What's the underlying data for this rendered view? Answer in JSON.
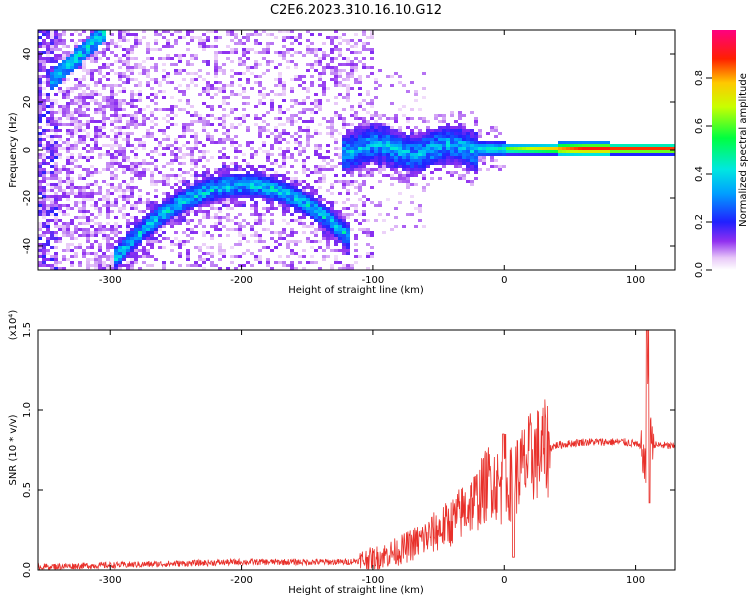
{
  "title": "C2E6.2023.310.16.10.G12",
  "chart_data": [
    {
      "type": "heatmap",
      "xlabel": "Height of straight line (km)",
      "ylabel": "Frequency (Hz)",
      "xlim": [
        -355,
        130
      ],
      "ylim": [
        -50,
        50
      ],
      "xticks": [
        -300,
        -200,
        -100,
        0,
        100
      ],
      "yticks": [
        -40,
        -20,
        0,
        20,
        40
      ],
      "colorbar": {
        "label": "Normalized spectral amplitude",
        "range": [
          0.0,
          1.0
        ],
        "ticks": [
          "0.0",
          "0.2",
          "0.4",
          "0.6",
          "0.8"
        ],
        "colormap": "rainbow (white-violet-blue-cyan-green-yellow-red-magenta)"
      },
      "features": [
        {
          "name": "upper-left streak",
          "x": [
            -345,
            -310
          ],
          "y": [
            30,
            48
          ]
        },
        {
          "name": "arc",
          "x": [
            -300,
            -120
          ],
          "y_start": -46,
          "y_peak": -14,
          "x_peak": -200,
          "y_end": -36
        },
        {
          "name": "central band",
          "x": [
            -120,
            130
          ],
          "y": 1
        }
      ]
    },
    {
      "type": "line",
      "xlabel": "Height of straight line (km)",
      "ylabel": "SNR (10 * v/v)",
      "multiplier": "(x10⁴)",
      "xlim": [
        -355,
        130
      ],
      "ylim": [
        0,
        1.5
      ],
      "xticks": [
        -300,
        -200,
        -100,
        0,
        100
      ],
      "yticks": [
        "0.0",
        "0.5",
        "1.0",
        "1.5"
      ],
      "series": [
        {
          "color": "#e8302a",
          "x": [
            -355,
            -300,
            -250,
            -200,
            -150,
            -120,
            -100,
            -80,
            -60,
            -40,
            -30,
            -20,
            -10,
            0,
            10,
            20,
            30,
            40,
            50,
            60,
            80,
            90,
            100,
            105,
            108,
            110,
            112,
            115,
            120,
            130
          ],
          "y": [
            0.02,
            0.03,
            0.04,
            0.05,
            0.05,
            0.05,
            0.07,
            0.12,
            0.2,
            0.3,
            0.38,
            0.45,
            0.58,
            0.48,
            0.6,
            0.7,
            0.75,
            0.78,
            0.79,
            0.8,
            0.8,
            0.8,
            0.79,
            0.75,
            0.6,
            1.5,
            0.8,
            0.78,
            0.78,
            0.77
          ]
        }
      ]
    }
  ]
}
